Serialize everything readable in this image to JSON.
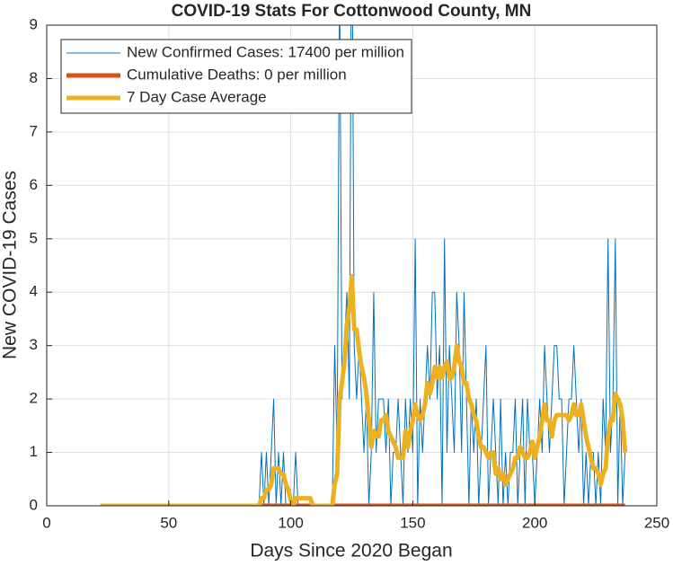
{
  "chart_data": {
    "type": "line",
    "title": "COVID-19 Stats For Cottonwood County, MN",
    "x_label": "Days Since 2020 Began",
    "y_label": "New COVID-19 Cases",
    "xlim": [
      0,
      250
    ],
    "xticks": [
      0,
      50,
      100,
      150,
      200,
      250
    ],
    "ylim": [
      0,
      9
    ],
    "yticks": [
      0,
      1,
      2,
      3,
      4,
      5,
      6,
      7,
      8,
      9
    ],
    "grid": true,
    "legend": "top-left",
    "x": [
      22,
      23,
      24,
      25,
      26,
      27,
      28,
      29,
      30,
      31,
      32,
      33,
      34,
      35,
      36,
      37,
      38,
      39,
      40,
      41,
      42,
      43,
      44,
      45,
      46,
      47,
      48,
      49,
      50,
      51,
      52,
      53,
      54,
      55,
      56,
      57,
      58,
      59,
      60,
      61,
      62,
      63,
      64,
      65,
      66,
      67,
      68,
      69,
      70,
      71,
      72,
      73,
      74,
      75,
      76,
      77,
      78,
      79,
      80,
      81,
      82,
      83,
      84,
      85,
      86,
      87,
      88,
      89,
      90,
      91,
      92,
      93,
      94,
      95,
      96,
      97,
      98,
      99,
      100,
      101,
      102,
      103,
      104,
      105,
      106,
      107,
      108,
      109,
      110,
      111,
      112,
      113,
      114,
      115,
      116,
      117,
      118,
      119,
      120,
      121,
      122,
      123,
      124,
      125,
      126,
      127,
      128,
      129,
      130,
      131,
      132,
      133,
      134,
      135,
      136,
      137,
      138,
      139,
      140,
      141,
      142,
      143,
      144,
      145,
      146,
      147,
      148,
      149,
      150,
      151,
      152,
      153,
      154,
      155,
      156,
      157,
      158,
      159,
      160,
      161,
      162,
      163,
      164,
      165,
      166,
      167,
      168,
      169,
      170,
      171,
      172,
      173,
      174,
      175,
      176,
      177,
      178,
      179,
      180,
      181,
      182,
      183,
      184,
      185,
      186,
      187,
      188,
      189,
      190,
      191,
      192,
      193,
      194,
      195,
      196,
      197,
      198,
      199,
      200,
      201,
      202,
      203,
      204,
      205,
      206,
      207,
      208,
      209,
      210,
      211,
      212,
      213,
      214,
      215,
      216,
      217,
      218,
      219,
      220,
      221,
      222,
      223,
      224,
      225,
      226,
      227,
      228,
      229,
      230,
      231,
      232,
      233,
      234,
      235,
      236,
      237
    ],
    "series": [
      {
        "name": "New Confirmed Cases: 17400 per million",
        "color": "#0072bd",
        "linewidth": 1,
        "values": [
          0,
          0,
          0,
          0,
          0,
          0,
          0,
          0,
          0,
          0,
          0,
          0,
          0,
          0,
          0,
          0,
          0,
          0,
          0,
          0,
          0,
          0,
          0,
          0,
          0,
          0,
          0,
          0,
          0,
          0,
          0,
          0,
          0,
          0,
          0,
          0,
          0,
          0,
          0,
          0,
          0,
          0,
          0,
          0,
          0,
          0,
          0,
          0,
          0,
          0,
          0,
          0,
          0,
          0,
          0,
          0,
          0,
          0,
          0,
          0,
          0,
          0,
          0,
          0,
          0,
          0,
          1,
          0,
          1,
          0,
          1,
          2,
          0,
          1,
          0,
          1,
          0,
          0,
          0,
          0,
          1,
          0,
          0,
          0,
          0,
          0,
          0,
          0,
          0,
          0,
          0,
          0,
          0,
          0,
          0,
          0,
          3,
          1,
          10,
          2,
          3,
          4,
          2,
          12,
          3,
          2,
          3,
          2,
          1,
          2,
          0,
          1,
          4,
          1,
          2,
          2,
          2,
          1,
          2,
          0,
          1,
          1,
          2,
          1,
          0,
          2,
          1,
          2,
          1,
          5,
          0,
          2,
          1,
          2,
          3,
          2,
          4,
          4,
          2,
          3,
          0,
          5,
          1,
          3,
          2,
          1,
          4,
          3,
          1,
          4,
          2,
          0,
          2,
          1,
          2,
          0,
          1,
          2,
          3,
          0,
          1,
          2,
          1,
          0,
          2,
          0,
          1,
          0,
          1,
          1,
          2,
          0,
          1,
          2,
          0,
          2,
          1,
          1,
          0,
          1,
          2,
          1,
          3,
          2,
          1,
          2,
          3,
          3,
          2,
          2,
          0,
          1,
          2,
          2,
          3,
          2,
          1,
          2,
          0,
          1,
          0,
          1,
          1,
          0,
          1,
          0,
          2,
          1,
          5,
          1,
          2,
          5,
          0,
          2,
          0,
          1
        ]
      },
      {
        "name": "Cumulative Deaths: 0 per million",
        "color": "#d95319",
        "linewidth": 5,
        "values": [
          0,
          0,
          0,
          0,
          0,
          0,
          0,
          0,
          0,
          0,
          0,
          0,
          0,
          0,
          0,
          0,
          0,
          0,
          0,
          0,
          0,
          0,
          0,
          0,
          0,
          0,
          0,
          0,
          0,
          0,
          0,
          0,
          0,
          0,
          0,
          0,
          0,
          0,
          0,
          0,
          0,
          0,
          0,
          0,
          0,
          0,
          0,
          0,
          0,
          0,
          0,
          0,
          0,
          0,
          0,
          0,
          0,
          0,
          0,
          0,
          0,
          0,
          0,
          0,
          0,
          0,
          0,
          0,
          0,
          0,
          0,
          0,
          0,
          0,
          0,
          0,
          0,
          0,
          0,
          0,
          0,
          0,
          0,
          0,
          0,
          0,
          0,
          0,
          0,
          0,
          0,
          0,
          0,
          0,
          0,
          0,
          0,
          0,
          0,
          0,
          0,
          0,
          0,
          0,
          0,
          0,
          0,
          0,
          0,
          0,
          0,
          0,
          0,
          0,
          0,
          0,
          0,
          0,
          0,
          0,
          0,
          0,
          0,
          0,
          0,
          0,
          0,
          0,
          0,
          0,
          0,
          0,
          0,
          0,
          0,
          0,
          0,
          0,
          0,
          0,
          0,
          0,
          0,
          0,
          0,
          0,
          0,
          0,
          0,
          0,
          0,
          0,
          0,
          0,
          0,
          0,
          0,
          0,
          0,
          0,
          0,
          0,
          0,
          0,
          0,
          0,
          0,
          0,
          0,
          0,
          0,
          0,
          0,
          0,
          0,
          0,
          0,
          0,
          0,
          0,
          0,
          0,
          0,
          0,
          0,
          0,
          0,
          0,
          0,
          0,
          0,
          0,
          0,
          0,
          0,
          0,
          0,
          0,
          0,
          0,
          0,
          0,
          0,
          0,
          0,
          0,
          0,
          0,
          0,
          0,
          0,
          0,
          0,
          0,
          0,
          0
        ]
      },
      {
        "name": "7 Day Case Average",
        "color": "#edb120",
        "linewidth": 5,
        "values": [
          0,
          0,
          0,
          0,
          0,
          0,
          0,
          0,
          0,
          0,
          0,
          0,
          0,
          0,
          0,
          0,
          0,
          0,
          0,
          0,
          0,
          0,
          0,
          0,
          0,
          0,
          0,
          0,
          0,
          0,
          0,
          0,
          0,
          0,
          0,
          0,
          0,
          0,
          0,
          0,
          0,
          0,
          0,
          0,
          0,
          0,
          0,
          0,
          0,
          0,
          0,
          0,
          0,
          0,
          0,
          0,
          0,
          0,
          0,
          0,
          0,
          0,
          0,
          0,
          0,
          0,
          0.14,
          0.14,
          0.3,
          0.3,
          0.4,
          0.7,
          0.7,
          0.7,
          0.6,
          0.6,
          0.4,
          0.3,
          0.1,
          0,
          0.14,
          0.14,
          0.14,
          0.14,
          0.14,
          0.14,
          0.14,
          0,
          0,
          0,
          0,
          0,
          0,
          0,
          0,
          0,
          0.4,
          0.6,
          2,
          2.3,
          2.7,
          3.4,
          3.7,
          4.3,
          3.3,
          3.3,
          2.9,
          2.6,
          2.4,
          2.1,
          1.6,
          1.1,
          1.4,
          1.3,
          1.3,
          1.6,
          1.6,
          1.7,
          1.4,
          1.3,
          1.2,
          1.1,
          0.9,
          0.9,
          0.9,
          1.4,
          1.1,
          1.4,
          1.6,
          1.9,
          1.7,
          1.6,
          1.7,
          1.9,
          2.3,
          2.1,
          2.3,
          2.6,
          2.4,
          2.6,
          2.4,
          2.6,
          2.7,
          2.4,
          2.4,
          2.6,
          3,
          2.7,
          2.6,
          2.3,
          2.3,
          2,
          1.9,
          1.7,
          1.6,
          1.3,
          1.1,
          1.1,
          1,
          0.9,
          1,
          1,
          0.6,
          0.7,
          0.5,
          0.6,
          0.4,
          0.5,
          0.6,
          0.7,
          0.9,
          0.9,
          1.1,
          1,
          0.9,
          0.9,
          1,
          1.2,
          0.9,
          1.1,
          1.3,
          1.6,
          1.9,
          1.6,
          1.6,
          1.3,
          1.6,
          1.7,
          1.7,
          1.7,
          1.7,
          1.7,
          1.6,
          1.7,
          1.9,
          1.7,
          1.7,
          1.9,
          1.6,
          1.3,
          1.1,
          0.9,
          0.7,
          0.7,
          0.6,
          0.4,
          0.6,
          0.7,
          1.3,
          1.6,
          1.6,
          2.1,
          2,
          1.9,
          1.6,
          1
        ]
      }
    ]
  }
}
